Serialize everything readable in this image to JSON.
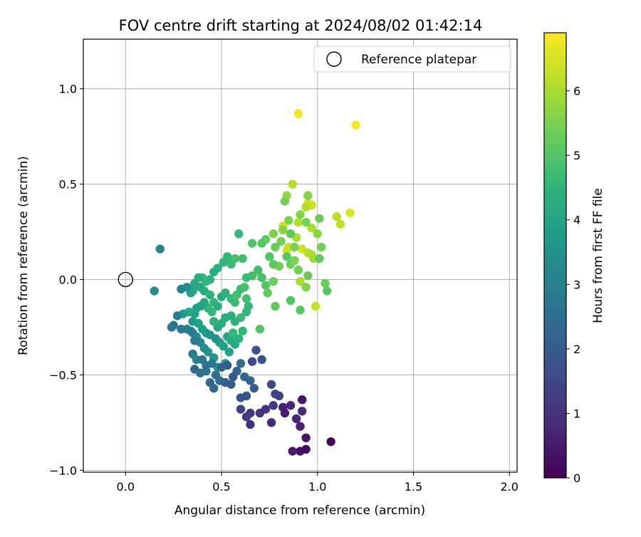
{
  "chart_data": {
    "type": "scatter",
    "title": "FOV centre drift starting at 2024/08/02 01:42:14",
    "xlabel": "Angular distance from reference (arcmin)",
    "ylabel": "Rotation from reference (arcmin)",
    "xlim": [
      -0.22,
      2.04
    ],
    "ylim": [
      -1.01,
      1.26
    ],
    "x_ticks": [
      {
        "value": 0.0,
        "label": "0.0"
      },
      {
        "value": 0.5,
        "label": "0.5"
      },
      {
        "value": 1.0,
        "label": "1.0"
      },
      {
        "value": 1.5,
        "label": "1.5"
      },
      {
        "value": 2.0,
        "label": "2.0"
      }
    ],
    "y_ticks": [
      {
        "value": -1.0,
        "label": "−1.0"
      },
      {
        "value": -0.5,
        "label": "−0.5"
      },
      {
        "value": 0.0,
        "label": "0.0"
      },
      {
        "value": 0.5,
        "label": "0.5"
      },
      {
        "value": 1.0,
        "label": "1.0"
      }
    ],
    "grid": true,
    "legend": {
      "placement": "top-right",
      "entries": [
        "Reference platepar"
      ]
    },
    "reference_point": {
      "name": "Reference platepar",
      "x": 0.0,
      "y": 0.0
    },
    "colorbar": {
      "label": "Hours from first FF file",
      "range": [
        0,
        6.9
      ],
      "colormap": "viridis",
      "ticks": [
        {
          "value": 0,
          "label": "0"
        },
        {
          "value": 1,
          "label": "1"
        },
        {
          "value": 2,
          "label": "2"
        },
        {
          "value": 3,
          "label": "3"
        },
        {
          "value": 4,
          "label": "4"
        },
        {
          "value": 5,
          "label": "5"
        },
        {
          "value": 6,
          "label": "6"
        }
      ]
    },
    "colormap_stops": [
      "#440154",
      "#482878",
      "#3e4a89",
      "#31688e",
      "#26828e",
      "#1f9e89",
      "#35b779",
      "#6ece58",
      "#b5de2b",
      "#fde725"
    ],
    "series": [
      {
        "values": [
          [
            0.9,
            0.87,
            6.8
          ],
          [
            1.2,
            0.81,
            6.8
          ],
          [
            1.17,
            0.35,
            6.6
          ],
          [
            1.12,
            0.29,
            6.3
          ],
          [
            1.1,
            0.33,
            6.2
          ],
          [
            0.87,
            0.5,
            6.1
          ],
          [
            0.95,
            0.4,
            6.5
          ],
          [
            0.97,
            0.39,
            6.4
          ],
          [
            0.94,
            0.38,
            6.1
          ],
          [
            0.82,
            0.28,
            6.4
          ],
          [
            0.84,
            0.15,
            6.5
          ],
          [
            0.85,
            0.17,
            6.3
          ],
          [
            0.89,
            0.22,
            6.0
          ],
          [
            0.92,
            0.16,
            6.4
          ],
          [
            0.95,
            0.14,
            6.2
          ],
          [
            0.97,
            0.13,
            6.0
          ],
          [
            0.98,
            0.11,
            5.9
          ],
          [
            0.91,
            -0.01,
            6.0
          ],
          [
            0.99,
            -0.14,
            6.3
          ],
          [
            0.69,
            0.04,
            6.2
          ],
          [
            0.9,
            0.3,
            6.1
          ],
          [
            0.97,
            0.27,
            6.0
          ],
          [
            0.84,
            0.44,
            5.8
          ],
          [
            0.95,
            0.44,
            5.6
          ],
          [
            0.83,
            0.41,
            5.4
          ],
          [
            0.85,
            0.31,
            5.5
          ],
          [
            0.91,
            0.34,
            5.6
          ],
          [
            0.94,
            0.3,
            5.5
          ],
          [
            1.0,
            0.24,
            5.7
          ],
          [
            1.01,
            0.32,
            5.3
          ],
          [
            1.02,
            0.17,
            5.4
          ],
          [
            1.01,
            0.11,
            5.2
          ],
          [
            1.04,
            -0.02,
            5.3
          ],
          [
            1.05,
            -0.06,
            5.1
          ],
          [
            0.95,
            0.02,
            5.3
          ],
          [
            0.94,
            -0.04,
            5.6
          ],
          [
            0.9,
            0.05,
            5.4
          ],
          [
            0.86,
            0.08,
            5.3
          ],
          [
            0.88,
            0.1,
            5.5
          ],
          [
            0.8,
            0.07,
            5.4
          ],
          [
            0.77,
            0.08,
            5.2
          ],
          [
            0.84,
            0.12,
            5.1
          ],
          [
            0.81,
            0.2,
            5.4
          ],
          [
            0.78,
            0.17,
            5.3
          ],
          [
            0.86,
            0.24,
            5.2
          ],
          [
            0.88,
            0.17,
            5.5
          ],
          [
            0.82,
            0.26,
            5.6
          ],
          [
            0.77,
            0.24,
            5.5
          ],
          [
            0.75,
            0.12,
            5.0
          ],
          [
            0.73,
            0.21,
            5.2
          ],
          [
            0.71,
            0.19,
            5.1
          ],
          [
            0.66,
            0.19,
            5.0
          ],
          [
            0.73,
            -0.03,
            5.1
          ],
          [
            0.77,
            -0.01,
            5.3
          ],
          [
            0.74,
            -0.07,
            5.2
          ],
          [
            0.78,
            -0.14,
            5.2
          ],
          [
            0.86,
            -0.11,
            5.0
          ],
          [
            0.91,
            -0.16,
            5.1
          ],
          [
            0.7,
            -0.26,
            5.0
          ],
          [
            0.71,
            0.01,
            4.9
          ],
          [
            0.69,
            0.05,
            4.8
          ],
          [
            0.66,
            0.02,
            4.8
          ],
          [
            0.63,
            0.01,
            4.7
          ],
          [
            0.59,
            0.24,
            4.6
          ],
          [
            0.61,
            0.11,
            4.8
          ],
          [
            0.57,
            0.11,
            4.9
          ],
          [
            0.55,
            0.08,
            4.7
          ],
          [
            0.53,
            0.12,
            4.6
          ],
          [
            0.51,
            0.09,
            4.5
          ],
          [
            0.48,
            0.06,
            4.4
          ],
          [
            0.46,
            0.04,
            4.3
          ],
          [
            0.44,
            0.0,
            4.4
          ],
          [
            0.42,
            -0.01,
            4.6
          ],
          [
            0.4,
            0.01,
            4.5
          ],
          [
            0.38,
            0.01,
            4.3
          ],
          [
            0.36,
            -0.02,
            4.2
          ],
          [
            0.35,
            -0.06,
            4.1
          ],
          [
            0.34,
            -0.07,
            4.0
          ],
          [
            0.39,
            -0.04,
            4.1
          ],
          [
            0.41,
            -0.06,
            4.2
          ],
          [
            0.44,
            -0.08,
            4.4
          ],
          [
            0.46,
            -0.12,
            4.5
          ],
          [
            0.48,
            -0.14,
            4.3
          ],
          [
            0.5,
            -0.09,
            4.2
          ],
          [
            0.52,
            -0.07,
            4.4
          ],
          [
            0.55,
            -0.1,
            4.6
          ],
          [
            0.57,
            -0.12,
            4.7
          ],
          [
            0.58,
            -0.08,
            4.8
          ],
          [
            0.6,
            -0.05,
            4.7
          ],
          [
            0.62,
            -0.04,
            4.9
          ],
          [
            0.63,
            -0.1,
            4.8
          ],
          [
            0.64,
            -0.14,
            4.6
          ],
          [
            0.63,
            -0.17,
            4.5
          ],
          [
            0.6,
            -0.2,
            4.7
          ],
          [
            0.57,
            -0.22,
            4.4
          ],
          [
            0.55,
            -0.19,
            4.3
          ],
          [
            0.52,
            -0.2,
            4.2
          ],
          [
            0.5,
            -0.23,
            4.3
          ],
          [
            0.48,
            -0.25,
            4.1
          ],
          [
            0.46,
            -0.22,
            4.4
          ],
          [
            0.45,
            -0.17,
            4.6
          ],
          [
            0.43,
            -0.15,
            4.5
          ],
          [
            0.41,
            -0.12,
            4.2
          ],
          [
            0.39,
            -0.14,
            4.0
          ],
          [
            0.37,
            -0.15,
            3.9
          ],
          [
            0.36,
            -0.18,
            4.0
          ],
          [
            0.33,
            -0.17,
            4.1
          ],
          [
            0.3,
            -0.18,
            3.8
          ],
          [
            0.35,
            -0.22,
            3.7
          ],
          [
            0.38,
            -0.23,
            3.9
          ],
          [
            0.4,
            -0.26,
            4.0
          ],
          [
            0.42,
            -0.28,
            3.8
          ],
          [
            0.44,
            -0.29,
            3.6
          ],
          [
            0.47,
            -0.31,
            3.5
          ],
          [
            0.49,
            -0.33,
            3.7
          ],
          [
            0.51,
            -0.35,
            3.9
          ],
          [
            0.53,
            -0.3,
            4.1
          ],
          [
            0.55,
            -0.32,
            4.3
          ],
          [
            0.57,
            -0.34,
            4.2
          ],
          [
            0.59,
            -0.31,
            4.4
          ],
          [
            0.61,
            -0.27,
            4.5
          ],
          [
            0.56,
            -0.28,
            4.6
          ],
          [
            0.54,
            -0.38,
            4.0
          ],
          [
            0.52,
            -0.44,
            3.8
          ],
          [
            0.48,
            -0.46,
            3.7
          ],
          [
            0.46,
            -0.41,
            3.6
          ],
          [
            0.43,
            -0.38,
            3.5
          ],
          [
            0.41,
            -0.36,
            3.4
          ],
          [
            0.39,
            -0.33,
            3.2
          ],
          [
            0.37,
            -0.3,
            3.3
          ],
          [
            0.35,
            -0.28,
            3.1
          ],
          [
            0.32,
            -0.26,
            3.0
          ],
          [
            0.29,
            -0.26,
            2.8
          ],
          [
            0.24,
            -0.25,
            2.6
          ],
          [
            0.25,
            -0.24,
            2.7
          ],
          [
            0.27,
            -0.19,
            2.9
          ],
          [
            0.29,
            -0.05,
            3.0
          ],
          [
            0.18,
            0.16,
            3.2
          ],
          [
            0.15,
            -0.06,
            3.3
          ],
          [
            0.32,
            -0.04,
            3.4
          ],
          [
            0.34,
            -0.27,
            2.9
          ],
          [
            0.36,
            -0.32,
            2.8
          ],
          [
            0.35,
            -0.39,
            2.9
          ],
          [
            0.37,
            -0.42,
            3.0
          ],
          [
            0.4,
            -0.42,
            2.8
          ],
          [
            0.42,
            -0.45,
            2.6
          ],
          [
            0.45,
            -0.44,
            2.7
          ],
          [
            0.47,
            -0.5,
            2.5
          ],
          [
            0.49,
            -0.53,
            2.4
          ],
          [
            0.44,
            -0.54,
            2.3
          ],
          [
            0.46,
            -0.57,
            2.2
          ],
          [
            0.52,
            -0.54,
            2.1
          ],
          [
            0.55,
            -0.55,
            2.0
          ],
          [
            0.58,
            -0.48,
            2.2
          ],
          [
            0.6,
            -0.44,
            2.4
          ],
          [
            0.62,
            -0.51,
            2.3
          ],
          [
            0.65,
            -0.53,
            2.2
          ],
          [
            0.67,
            -0.57,
            2.0
          ],
          [
            0.63,
            -0.61,
            1.9
          ],
          [
            0.6,
            -0.62,
            1.8
          ],
          [
            0.56,
            -0.51,
            1.9
          ],
          [
            0.53,
            -0.45,
            2.0
          ],
          [
            0.5,
            -0.46,
            2.1
          ],
          [
            0.36,
            -0.47,
            2.4
          ],
          [
            0.39,
            -0.49,
            2.5
          ],
          [
            0.42,
            -0.48,
            2.6
          ],
          [
            0.68,
            -0.37,
            1.8
          ],
          [
            0.71,
            -0.42,
            1.7
          ],
          [
            0.66,
            -0.43,
            1.6
          ],
          [
            0.76,
            -0.55,
            1.5
          ],
          [
            0.78,
            -0.6,
            1.4
          ],
          [
            0.8,
            -0.61,
            1.3
          ],
          [
            0.77,
            -0.66,
            1.2
          ],
          [
            0.73,
            -0.68,
            1.1
          ],
          [
            0.7,
            -0.7,
            1.0
          ],
          [
            0.65,
            -0.7,
            1.1
          ],
          [
            0.63,
            -0.72,
            1.2
          ],
          [
            0.6,
            -0.68,
            1.3
          ],
          [
            0.65,
            -0.76,
            1.0
          ],
          [
            0.76,
            -0.75,
            0.8
          ],
          [
            0.82,
            -0.67,
            0.6
          ],
          [
            0.83,
            -0.7,
            0.5
          ],
          [
            0.86,
            -0.66,
            0.7
          ],
          [
            0.92,
            -0.63,
            0.4
          ],
          [
            0.92,
            -0.69,
            0.8
          ],
          [
            0.91,
            -0.77,
            0.6
          ],
          [
            0.89,
            -0.73,
            0.7
          ],
          [
            0.94,
            -0.83,
            0.4
          ],
          [
            0.94,
            -0.89,
            0.2
          ],
          [
            0.91,
            -0.9,
            0.3
          ],
          [
            0.87,
            -0.9,
            0.5
          ],
          [
            1.07,
            -0.85,
            0.1
          ]
        ]
      }
    ]
  }
}
